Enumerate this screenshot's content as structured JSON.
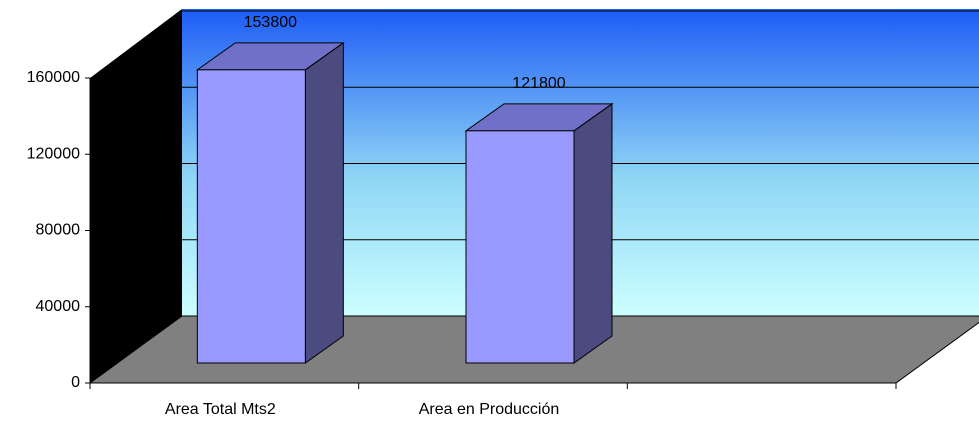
{
  "chart_data": {
    "type": "bar3d",
    "categories": [
      "Area Total Mts2",
      "Area en Producción",
      null
    ],
    "values": [
      153800,
      121800,
      null
    ],
    "color": "#9999ff",
    "ylim": [
      0,
      160000
    ],
    "yticks": [
      0,
      40000,
      80000,
      120000,
      160000
    ],
    "grid": true
  }
}
